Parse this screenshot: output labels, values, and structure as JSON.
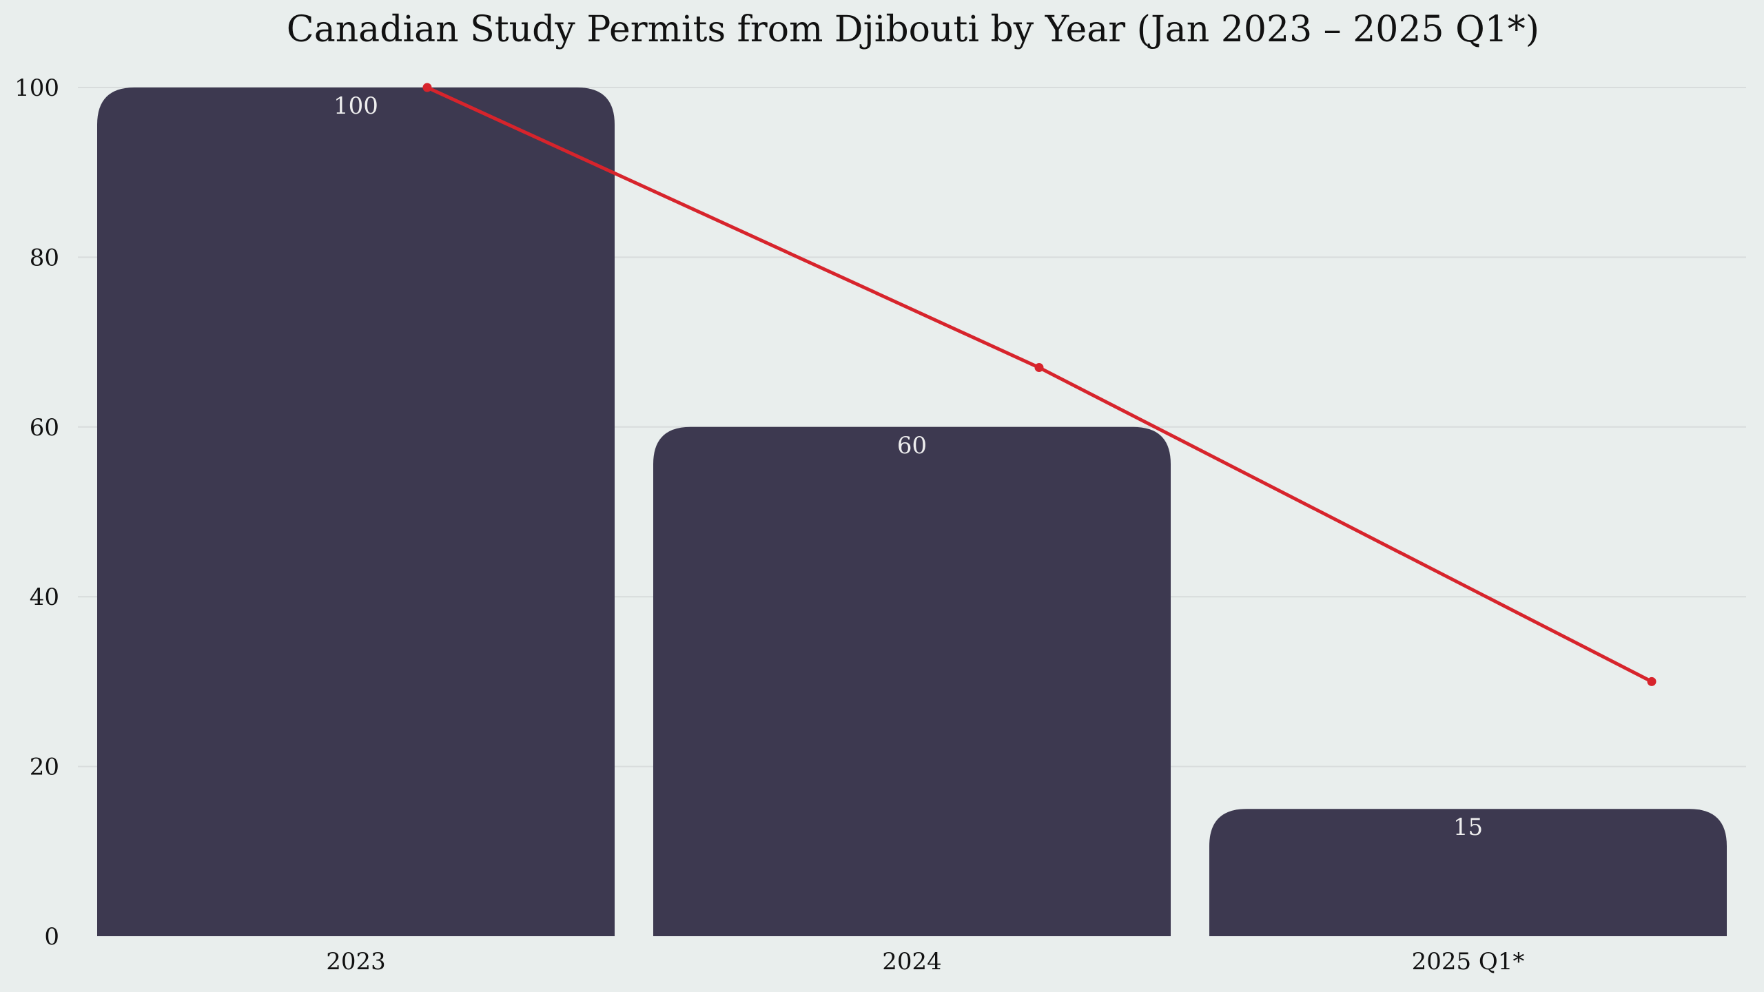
{
  "chart_data": {
    "type": "bar",
    "title": "Canadian Study Permits from Djibouti by Year (Jan 2023 – 2025 Q1*)",
    "categories": [
      "2023",
      "2024",
      "2025 Q1*"
    ],
    "values": [
      100,
      60,
      15
    ],
    "trend_line": [
      100,
      67,
      30
    ],
    "xlabel": "",
    "ylabel": "",
    "ylim": [
      0,
      100
    ],
    "yticks": [
      0,
      20,
      40,
      60,
      80,
      100
    ],
    "grid": "horizontal",
    "legend": "none",
    "colors": {
      "bar": "#3d3950",
      "trend": "#d7242c",
      "bar_label": "#eeeeee",
      "background": "#e9eeed"
    }
  }
}
